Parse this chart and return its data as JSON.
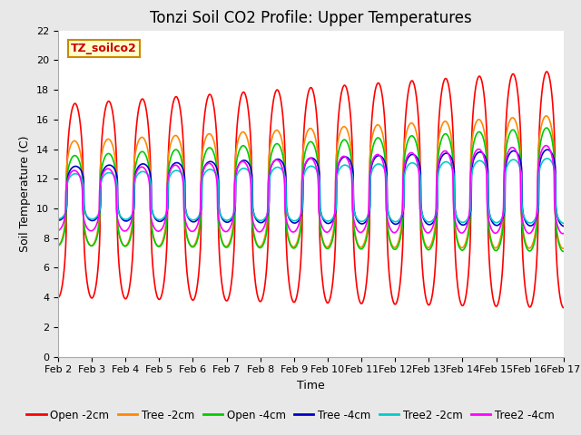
{
  "title": "Tonzi Soil CO2 Profile: Upper Temperatures",
  "xlabel": "Time",
  "ylabel": "Soil Temperature (C)",
  "ylim": [
    0,
    22
  ],
  "xlim": [
    0,
    15
  ],
  "x_tick_labels": [
    "Feb 2",
    "Feb 3",
    "Feb 4",
    "Feb 5",
    "Feb 6",
    "Feb 7",
    "Feb 8",
    "Feb 9",
    "Feb 10",
    "Feb 11",
    "Feb 12",
    "Feb 13",
    "Feb 14",
    "Feb 15",
    "Feb 16",
    "Feb 17"
  ],
  "annotation_text": "TZ_soilco2",
  "annotation_color": "#cc0000",
  "annotation_bg": "#ffffcc",
  "annotation_border": "#cc8800",
  "bg_color": "#e8e8e8",
  "plot_bg": "#ffffff",
  "grid_color": "#d8d8d8",
  "lines": [
    {
      "label": "Open -2cm",
      "color": "#ff0000",
      "lw": 1.2
    },
    {
      "label": "Tree -2cm",
      "color": "#ff8800",
      "lw": 1.2
    },
    {
      "label": "Open -4cm",
      "color": "#00cc00",
      "lw": 1.2
    },
    {
      "label": "Tree -4cm",
      "color": "#0000cc",
      "lw": 1.2
    },
    {
      "label": "Tree2 -2cm",
      "color": "#00cccc",
      "lw": 1.2
    },
    {
      "label": "Tree2 -4cm",
      "color": "#ff00ff",
      "lw": 1.2
    }
  ],
  "title_fontsize": 12,
  "axis_fontsize": 9,
  "tick_fontsize": 8,
  "legend_fontsize": 8.5,
  "yticks": [
    0,
    2,
    4,
    6,
    8,
    10,
    12,
    14,
    16,
    18,
    20,
    22
  ]
}
